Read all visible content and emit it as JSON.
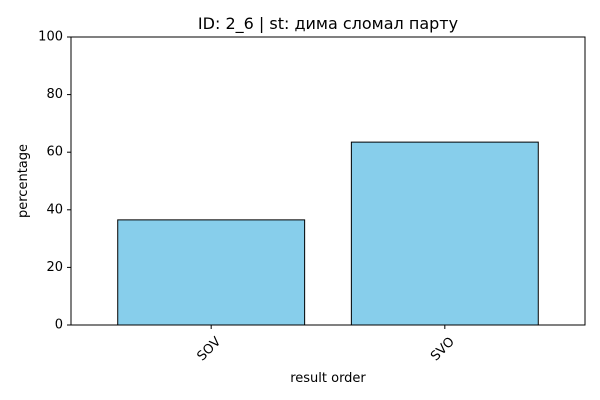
{
  "chart_data": {
    "type": "bar",
    "title": "ID: 2_6 | st: дима сломал парту",
    "xlabel": "result order",
    "ylabel": "percentage",
    "categories": [
      "SOV",
      "SVO"
    ],
    "values": [
      36.5,
      63.5
    ],
    "ylim": [
      0,
      100
    ],
    "yticks": [
      0,
      20,
      40,
      60,
      80,
      100
    ],
    "grid": false,
    "legend": "none",
    "bar_color": "#87CEEB",
    "bar_edge_color": "#000000",
    "tick_label_rotation_deg": 45
  }
}
